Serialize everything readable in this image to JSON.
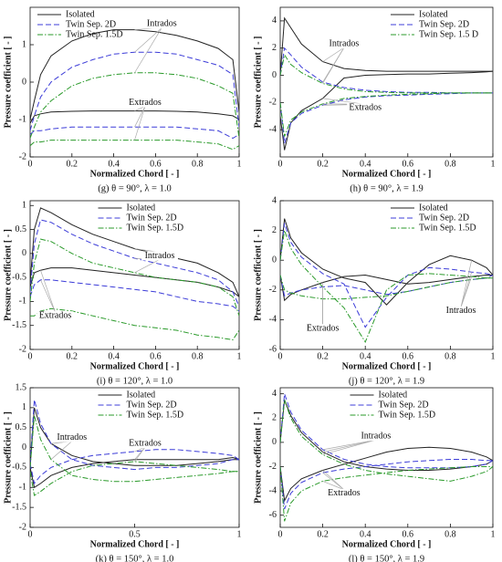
{
  "chart_data": [
    {
      "type": "line",
      "caption": "(g) θ = 90°, λ = 1.0",
      "xlabel": "Normalized Chord [ - ]",
      "ylabel": "Pressure coefficient [ - ]",
      "x": [
        0,
        0.02,
        0.05,
        0.1,
        0.2,
        0.3,
        0.4,
        0.5,
        0.6,
        0.7,
        0.8,
        0.9,
        0.97,
        1
      ],
      "xlim": [
        0,
        1
      ],
      "xticks": [
        0,
        0.2,
        0.4,
        0.6,
        0.8,
        1
      ],
      "ylim": [
        -2,
        2
      ],
      "yticks": [
        -2,
        -1,
        0,
        1
      ],
      "legend": "upper left",
      "series": [
        {
          "name": "Isolated",
          "color": "#222222",
          "dash": "solid",
          "intrados": [
            -1.0,
            -0.5,
            0.2,
            0.7,
            1.1,
            1.3,
            1.4,
            1.4,
            1.35,
            1.25,
            1.1,
            0.9,
            0.6,
            -0.8
          ],
          "extrados": [
            -1.1,
            -0.9,
            -0.85,
            -0.8,
            -0.78,
            -0.77,
            -0.77,
            -0.77,
            -0.77,
            -0.78,
            -0.8,
            -0.85,
            -0.9,
            -1.0
          ]
        },
        {
          "name": "Twin Sep. 2D",
          "color": "#3c3cd8",
          "dash": "dashed",
          "intrados": [
            -1.3,
            -0.9,
            -0.4,
            0,
            0.4,
            0.6,
            0.75,
            0.8,
            0.8,
            0.75,
            0.6,
            0.45,
            0.2,
            -1.2
          ],
          "extrados": [
            -1.4,
            -1.3,
            -1.3,
            -1.25,
            -1.2,
            -1.2,
            -1.2,
            -1.2,
            -1.2,
            -1.2,
            -1.25,
            -1.3,
            -1.5,
            -1.4
          ]
        },
        {
          "name": "Twin Sep. 1.5D",
          "color": "#2a9a2a",
          "dash": "dashdot",
          "intrados": [
            -1.5,
            -1.2,
            -0.8,
            -0.5,
            -0.1,
            0.1,
            0.2,
            0.25,
            0.25,
            0.2,
            0.1,
            -0.1,
            -0.3,
            -1.5
          ],
          "extrados": [
            -1.7,
            -1.6,
            -1.6,
            -1.55,
            -1.55,
            -1.55,
            -1.55,
            -1.55,
            -1.55,
            -1.55,
            -1.6,
            -1.65,
            -1.8,
            -1.7
          ]
        }
      ],
      "annotations": [
        {
          "text": "Intrados",
          "curve": "intrados"
        },
        {
          "text": "Extrados",
          "curve": "extrados"
        }
      ]
    },
    {
      "type": "line",
      "caption": "(h) θ = 90°, λ = 1.9",
      "xlabel": "Normalized Chord [ - ]",
      "ylabel": "Pressure coefficient [ - ]",
      "x": [
        0,
        0.02,
        0.05,
        0.1,
        0.2,
        0.3,
        0.4,
        0.5,
        0.6,
        0.7,
        0.8,
        0.9,
        0.97,
        1
      ],
      "xlim": [
        0,
        1
      ],
      "xticks": [
        0,
        0.2,
        0.4,
        0.6,
        0.8,
        1
      ],
      "ylim": [
        -6,
        5
      ],
      "yticks": [
        -4,
        -2,
        0,
        2,
        4
      ],
      "legend": "upper right",
      "series": [
        {
          "name": "Isolated",
          "color": "#222222",
          "dash": "solid",
          "intrados": [
            0,
            4.2,
            3.5,
            2.3,
            1.0,
            0.5,
            0.35,
            0.3,
            0.3,
            0.3,
            0.3,
            0.3,
            0.3,
            0.3
          ],
          "extrados": [
            -3,
            -5.5,
            -3.5,
            -2.6,
            -1.7,
            -0.2,
            0,
            0.05,
            0.1,
            0.1,
            0.15,
            0.2,
            0.25,
            0.3
          ]
        },
        {
          "name": "Twin Sep. 2D",
          "color": "#3c3cd8",
          "dash": "dashed",
          "intrados": [
            0,
            2,
            1.5,
            0.6,
            -0.5,
            -0.9,
            -1.1,
            -1.2,
            -1.25,
            -1.25,
            -1.3,
            -1.3,
            -1.3,
            -1.3
          ],
          "extrados": [
            -2,
            -5,
            -3.5,
            -2.8,
            -2.2,
            -1.8,
            -1.6,
            -1.5,
            -1.45,
            -1.4,
            -1.35,
            -1.3,
            -1.3,
            -1.3
          ]
        },
        {
          "name": "Twin Sep. 1.5 D",
          "color": "#2a9a2a",
          "dash": "dashdot",
          "intrados": [
            0,
            1.5,
            0.8,
            0.2,
            -0.6,
            -1,
            -1.2,
            -1.25,
            -1.3,
            -1.3,
            -1.3,
            -1.3,
            -1.3,
            -1.3
          ],
          "extrados": [
            -2,
            -4.5,
            -3.3,
            -2.7,
            -2.1,
            -1.7,
            -1.55,
            -1.45,
            -1.4,
            -1.35,
            -1.3,
            -1.3,
            -1.3,
            -1.3
          ]
        }
      ],
      "annotations": [
        {
          "text": "Intrados",
          "curve": "intrados"
        },
        {
          "text": "Extrados",
          "curve": "extrados"
        }
      ]
    },
    {
      "type": "line",
      "caption": "(i) θ = 120°, λ = 1.0",
      "xlabel": "Normalized Chord [ - ]",
      "ylabel": "Pressure coefficient [ - ]",
      "x": [
        0,
        0.02,
        0.05,
        0.1,
        0.2,
        0.3,
        0.4,
        0.5,
        0.6,
        0.7,
        0.8,
        0.9,
        0.97,
        1
      ],
      "xlim": [
        0,
        1
      ],
      "xticks": [
        0,
        0.2,
        0.4,
        0.6,
        0.8,
        1
      ],
      "ylim": [
        -2,
        1.1
      ],
      "yticks": [
        -2,
        -1.5,
        -1,
        -0.5,
        0,
        0.5,
        1
      ],
      "legend": "upper center",
      "series": [
        {
          "name": "Isolated",
          "color": "#222222",
          "dash": "solid",
          "intrados": [
            -0.6,
            0.5,
            0.95,
            0.85,
            0.6,
            0.4,
            0.25,
            0.1,
            0,
            -0.1,
            -0.2,
            -0.4,
            -0.6,
            -0.9
          ],
          "extrados": [
            -0.7,
            -0.4,
            -0.35,
            -0.3,
            -0.3,
            -0.35,
            -0.4,
            -0.45,
            -0.5,
            -0.55,
            -0.6,
            -0.7,
            -0.8,
            -0.9
          ]
        },
        {
          "name": "Twin Sep. 2D",
          "color": "#3c3cd8",
          "dash": "dashed",
          "intrados": [
            -0.8,
            0.2,
            0.7,
            0.65,
            0.4,
            0.2,
            0.05,
            -0.1,
            -0.2,
            -0.3,
            -0.4,
            -0.55,
            -0.8,
            -1.1
          ],
          "extrados": [
            -0.9,
            -0.65,
            -0.55,
            -0.55,
            -0.6,
            -0.65,
            -0.7,
            -0.75,
            -0.8,
            -0.9,
            -1,
            -1.05,
            -1.1,
            -1.2
          ]
        },
        {
          "name": "Twin Sep. 1.5D",
          "color": "#2a9a2a",
          "dash": "dashdot",
          "intrados": [
            -1,
            -0.2,
            0.3,
            0.25,
            0,
            -0.2,
            -0.3,
            -0.4,
            -0.5,
            -0.55,
            -0.6,
            -0.7,
            -0.9,
            -1.3
          ],
          "extrados": [
            -1.3,
            -1.3,
            -1.2,
            -1.15,
            -1.2,
            -1.3,
            -1.4,
            -1.5,
            -1.55,
            -1.6,
            -1.7,
            -1.75,
            -1.8,
            -1.6
          ]
        }
      ],
      "annotations": [
        {
          "text": "Intrados",
          "curve": "intrados"
        },
        {
          "text": "Extrados",
          "curve": "extrados"
        }
      ]
    },
    {
      "type": "line",
      "caption": "(j) θ = 120°, λ = 1.9",
      "xlabel": "Normalized Chord [ - ]",
      "ylabel": "Pressure coefficient [ - ]",
      "x": [
        0,
        0.02,
        0.05,
        0.1,
        0.2,
        0.3,
        0.4,
        0.5,
        0.6,
        0.7,
        0.8,
        0.9,
        0.97,
        1
      ],
      "xlim": [
        0,
        1
      ],
      "xticks": [
        0,
        0.2,
        0.4,
        0.6,
        0.8,
        1
      ],
      "ylim": [
        -6,
        4
      ],
      "yticks": [
        -6,
        -4,
        -2,
        0,
        2,
        4
      ],
      "legend": "upper right",
      "series": [
        {
          "name": "Isolated",
          "color": "#222222",
          "dash": "solid",
          "intrados": [
            0,
            2.8,
            1.5,
            0.5,
            -0.6,
            -1.2,
            -1.5,
            -3,
            -1.5,
            -0.3,
            0.3,
            0,
            -0.5,
            -1
          ],
          "extrados": [
            -1,
            -2.7,
            -2.3,
            -2,
            -1.5,
            -1.1,
            -1.0,
            -1.3,
            -1.6,
            -1.5,
            -1.3,
            -1.1,
            -1,
            -1
          ]
        },
        {
          "name": "Twin Sep. 2D",
          "color": "#3c3cd8",
          "dash": "dashed",
          "intrados": [
            0,
            2.5,
            1.2,
            0.2,
            -0.9,
            -1.6,
            -4.5,
            -2.5,
            -1,
            -0.5,
            -0.6,
            -0.8,
            -0.9,
            -1
          ],
          "extrados": [
            -1,
            -2.4,
            -2.2,
            -2,
            -1.8,
            -1.7,
            -2,
            -2.3,
            -2.1,
            -1.8,
            -1.5,
            -1.3,
            -1.2,
            -1
          ]
        },
        {
          "name": "Twin Sep. 1.5D",
          "color": "#2a9a2a",
          "dash": "dashdot",
          "intrados": [
            0,
            2,
            0.8,
            -0.3,
            -1.8,
            -3.2,
            -5.5,
            -2,
            -1,
            -0.9,
            -1,
            -1.1,
            -1.2,
            -1.2
          ],
          "extrados": [
            -1,
            -2,
            -2.2,
            -2.4,
            -2.6,
            -2.6,
            -2.5,
            -2.4,
            -2.1,
            -1.8,
            -1.5,
            -1.3,
            -1.2,
            -1.2
          ]
        }
      ],
      "annotations": [
        {
          "text": "Intrados",
          "curve": "intrados"
        },
        {
          "text": "Extrados",
          "curve": "extrados"
        }
      ]
    },
    {
      "type": "line",
      "caption": "(k) θ = 150°, λ = 1.0",
      "xlabel": "Normalized Chord [ - ]",
      "ylabel": "Pressure coefficient [ - ]",
      "x": [
        0,
        0.02,
        0.05,
        0.1,
        0.2,
        0.3,
        0.4,
        0.5,
        0.6,
        0.7,
        0.8,
        0.9,
        0.97,
        1
      ],
      "xlim": [
        0,
        1
      ],
      "xticks": [
        0,
        0.5,
        1
      ],
      "ylim": [
        -2,
        1.5
      ],
      "yticks": [
        -2,
        -1.5,
        -1,
        -0.5,
        0,
        0.5,
        1,
        1.5
      ],
      "legend": "upper center",
      "series": [
        {
          "name": "Isolated",
          "color": "#222222",
          "dash": "solid",
          "intrados": [
            -0.5,
            1.0,
            0.5,
            0.1,
            -0.2,
            -0.35,
            -0.4,
            -0.45,
            -0.45,
            -0.45,
            -0.4,
            -0.35,
            -0.3,
            -0.3
          ],
          "extrados": [
            -0.5,
            -1,
            -0.9,
            -0.7,
            -0.5,
            -0.4,
            -0.35,
            -0.3,
            -0.3,
            -0.3,
            -0.3,
            -0.3,
            -0.25,
            -0.3
          ]
        },
        {
          "name": "Twin Sep. 2D",
          "color": "#3c3cd8",
          "dash": "dashed",
          "intrados": [
            -0.4,
            1.2,
            0.6,
            0.1,
            -0.3,
            -0.45,
            -0.5,
            -0.55,
            -0.5,
            -0.5,
            -0.45,
            -0.4,
            -0.3,
            -0.3
          ],
          "extrados": [
            -0.4,
            -0.9,
            -0.7,
            -0.5,
            -0.3,
            -0.2,
            -0.15,
            -0.1,
            -0.05,
            -0.05,
            -0.1,
            -0.15,
            -0.2,
            -0.3
          ]
        },
        {
          "name": "Twin Sep. 1.5D",
          "color": "#2a9a2a",
          "dash": "dashdot",
          "intrados": [
            -0.5,
            0.8,
            0.2,
            -0.3,
            -0.7,
            -0.8,
            -0.85,
            -0.85,
            -0.8,
            -0.75,
            -0.7,
            -0.65,
            -0.6,
            -0.6
          ],
          "extrados": [
            -0.6,
            -1.2,
            -1.1,
            -0.9,
            -0.6,
            -0.45,
            -0.4,
            -0.35,
            -0.4,
            -0.45,
            -0.5,
            -0.55,
            -0.6,
            -0.6
          ]
        }
      ],
      "annotations": [
        {
          "text": "Intrados",
          "curve": "intrados"
        },
        {
          "text": "Extrados",
          "curve": "extrados"
        }
      ]
    },
    {
      "type": "line",
      "caption": "(l) θ = 150°, λ = 1.9",
      "xlabel": "Normalized Chord [ - ]",
      "ylabel": "Pressure coefficient [ - ]",
      "x": [
        0,
        0.02,
        0.05,
        0.1,
        0.2,
        0.3,
        0.4,
        0.5,
        0.6,
        0.7,
        0.8,
        0.9,
        0.97,
        1
      ],
      "xlim": [
        0,
        1
      ],
      "xticks": [
        0,
        0.2,
        0.4,
        0.6,
        0.8,
        1
      ],
      "ylim": [
        -7,
        4.5
      ],
      "yticks": [
        -6,
        -4,
        -2,
        0,
        2,
        4
      ],
      "legend": "upper center",
      "series": [
        {
          "name": "Isolated",
          "color": "#222222",
          "dash": "solid",
          "intrados": [
            0,
            3.5,
            2.2,
            0.8,
            -0.8,
            -1.6,
            -2,
            -2.2,
            -2.3,
            -2.3,
            -2.2,
            -2,
            -1.8,
            -1.5
          ],
          "extrados": [
            -2,
            -4.8,
            -3.8,
            -3,
            -2.3,
            -1.8,
            -1.3,
            -0.8,
            -0.5,
            -0.4,
            -0.5,
            -0.8,
            -1.2,
            -1.5
          ]
        },
        {
          "name": "Twin Sep. 2D",
          "color": "#3c3cd8",
          "dash": "dashed",
          "intrados": [
            0,
            4,
            2.5,
            1,
            -0.6,
            -1.4,
            -1.8,
            -2,
            -2.1,
            -2.1,
            -2.1,
            -2,
            -1.8,
            -1.5
          ],
          "extrados": [
            -2,
            -5.5,
            -4.2,
            -3.3,
            -2.5,
            -2.2,
            -2,
            -1.8,
            -1.6,
            -1.5,
            -1.4,
            -1.4,
            -1.5,
            -1.5
          ]
        },
        {
          "name": "Twin Sep. 1.5D",
          "color": "#2a9a2a",
          "dash": "dashdot",
          "intrados": [
            0,
            3.5,
            2,
            0.5,
            -1,
            -1.8,
            -2.3,
            -2.6,
            -2.8,
            -3,
            -3.2,
            -2.8,
            -2.4,
            -2
          ],
          "extrados": [
            -2,
            -6.5,
            -5,
            -4,
            -3.2,
            -2.9,
            -2.7,
            -2.5,
            -2.3,
            -2.2,
            -2.1,
            -2,
            -2,
            -2
          ]
        }
      ],
      "annotations": [
        {
          "text": "Intrados",
          "curve": "intrados"
        },
        {
          "text": "Extrados",
          "curve": "extrados"
        }
      ]
    }
  ]
}
